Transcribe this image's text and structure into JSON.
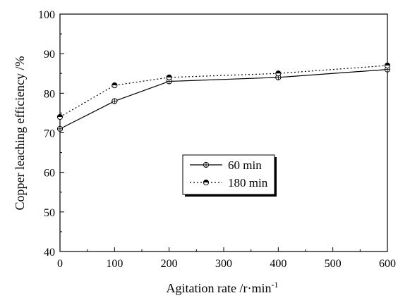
{
  "chart_data": {
    "type": "line",
    "title": "",
    "xlabel": "Agitation rate /r·min",
    "xlabel_superscript": "-1",
    "ylabel": "Copper leaching efficiency /%",
    "xlim": [
      0,
      600
    ],
    "ylim": [
      40,
      100
    ],
    "xticks": [
      0,
      100,
      200,
      300,
      400,
      500,
      600
    ],
    "yticks": [
      40,
      50,
      60,
      70,
      80,
      90,
      100
    ],
    "grid": false,
    "legend_position": "center",
    "series": [
      {
        "name": "60 min",
        "line_style": "solid",
        "marker": "circle-plus",
        "x": [
          0,
          100,
          200,
          400,
          600
        ],
        "y": [
          71,
          78,
          83,
          84,
          86
        ]
      },
      {
        "name": "180 min",
        "line_style": "dotted",
        "marker": "circle-half-filled",
        "x": [
          0,
          100,
          200,
          400,
          600
        ],
        "y": [
          74,
          82,
          84,
          85,
          87
        ]
      }
    ]
  }
}
